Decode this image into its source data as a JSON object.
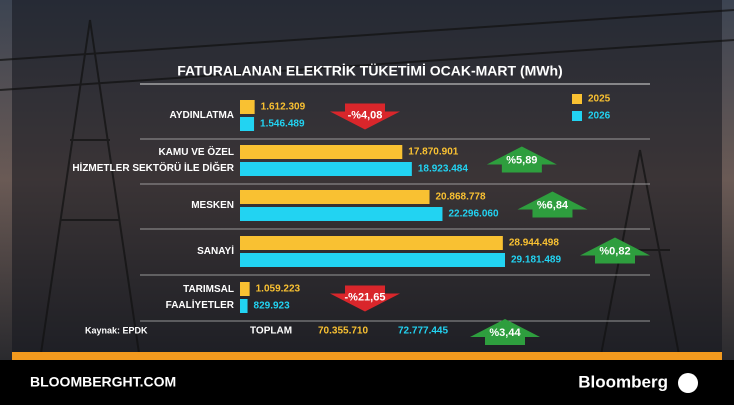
{
  "chart_data": {
    "type": "bar",
    "orientation": "horizontal",
    "title": "FATURALANAN ELEKTRİK TÜKETİMİ OCAK-MART (MWh)",
    "categories": [
      "AYDINLATMA",
      "KAMU VE ÖZEL HİZMETLER SEKTÖRÜ İLE DİĞER",
      "MESKEN",
      "SANAYİ",
      "TARIMSAL FAALİYETLER"
    ],
    "series": [
      {
        "name": "2025",
        "color": "#f9c132",
        "values": [
          1612309,
          17870901,
          20868778,
          28944498,
          1059223
        ],
        "value_labels": [
          "1.612.309",
          "17.870.901",
          "20.868.778",
          "28.944.498",
          "1.059.223"
        ]
      },
      {
        "name": "2026",
        "color": "#22d3f2",
        "values": [
          1546489,
          18923484,
          22296060,
          29181489,
          829923
        ],
        "value_labels": [
          "1.546.489",
          "18.923.484",
          "22.296.060",
          "29.181.489",
          "829.923"
        ]
      }
    ],
    "changes": [
      -4.08,
      5.89,
      6.84,
      0.82,
      -21.65
    ],
    "change_labels": [
      "-%4,08",
      "%5,89",
      "%6,84",
      "%0,82",
      "-%21,65"
    ],
    "total_label": "TOPLAM",
    "totals": [
      70355710,
      72777445
    ],
    "total_labels": [
      "70.355.710",
      "72.777.445"
    ],
    "total_change": 3.44,
    "total_change_label": "%3,44",
    "source": "Kaynak: EPDK",
    "footer_left": "BLOOMBERGHT.COM",
    "footer_right": "Bloomberg"
  }
}
